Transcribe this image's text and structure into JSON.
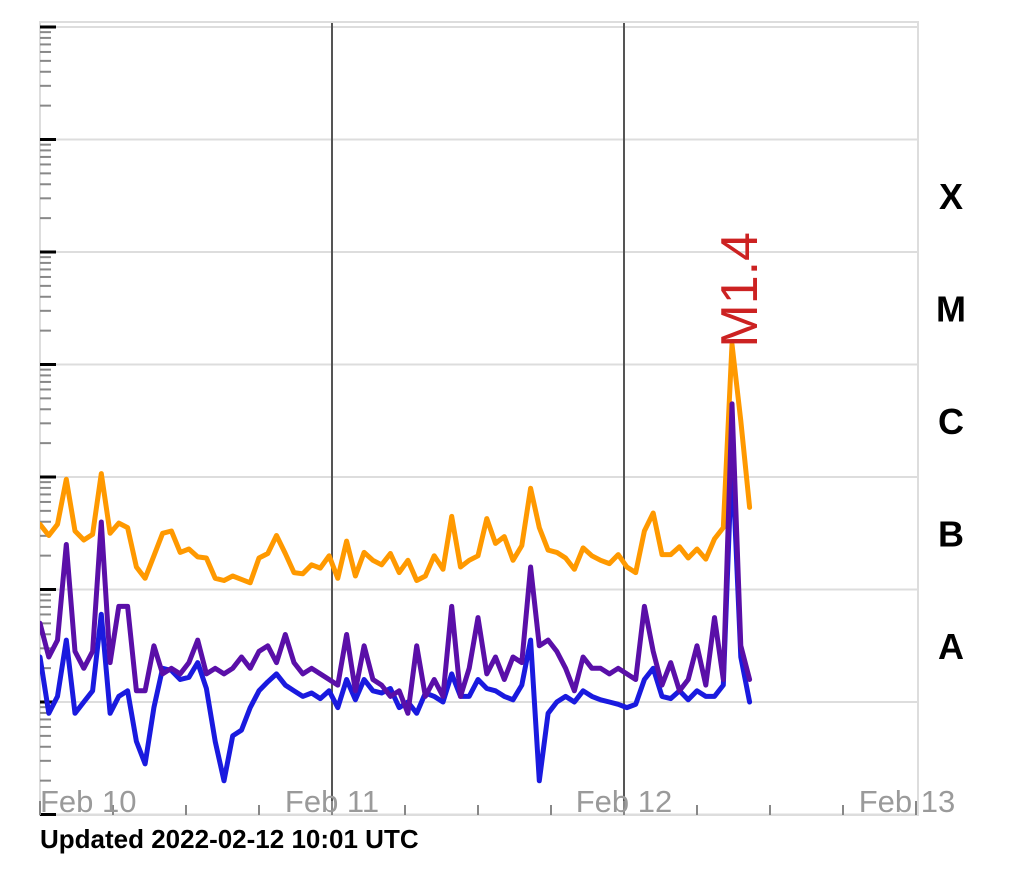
{
  "updated_text": "Updated 2022-02-12 10:01 UTC",
  "colors": {
    "short_channel": "#ff9900",
    "long_channel_primary": "#1a1adf",
    "long_channel_secondary": "#5a0fa8",
    "flare_label": "#cc2222",
    "grid": "#dddddd",
    "day_line": "#555555"
  },
  "chart_data": {
    "type": "line",
    "title": "",
    "xlabel": "",
    "ylabel": "",
    "y_scale": "log",
    "ylim_class_units": [
      -1,
      6
    ],
    "x_range_days": [
      "Feb 10",
      "Feb 13"
    ],
    "x_tick_labels": [
      "Feb 10",
      "Feb 11",
      "Feb 12",
      "Feb 13"
    ],
    "y_class_labels": [
      "A",
      "B",
      "C",
      "M",
      "X"
    ],
    "grid": true,
    "day_separators": [
      "Feb 11",
      "Feb 12"
    ],
    "annotations": [
      {
        "text": "M1.4",
        "x_days": 2.37,
        "y_class": 3.15,
        "rotation": -90
      }
    ],
    "series": [
      {
        "color_key": "short_channel",
        "x_days": [
          0.0,
          0.03,
          0.06,
          0.09,
          0.12,
          0.15,
          0.18,
          0.21,
          0.24,
          0.27,
          0.3,
          0.33,
          0.36,
          0.39,
          0.42,
          0.45,
          0.48,
          0.51,
          0.54,
          0.57,
          0.6,
          0.63,
          0.66,
          0.69,
          0.72,
          0.75,
          0.78,
          0.81,
          0.84,
          0.87,
          0.9,
          0.93,
          0.96,
          0.99,
          1.02,
          1.05,
          1.08,
          1.11,
          1.14,
          1.17,
          1.2,
          1.23,
          1.26,
          1.29,
          1.32,
          1.35,
          1.38,
          1.41,
          1.44,
          1.47,
          1.5,
          1.53,
          1.56,
          1.59,
          1.62,
          1.65,
          1.68,
          1.71,
          1.74,
          1.77,
          1.8,
          1.83,
          1.86,
          1.89,
          1.92,
          1.95,
          1.98,
          2.01,
          2.04,
          2.07,
          2.1,
          2.13,
          2.16,
          2.19,
          2.22,
          2.25,
          2.28,
          2.31,
          2.34,
          2.37,
          2.4,
          2.43
        ],
        "y_class": [
          1.58,
          1.48,
          1.58,
          1.98,
          1.52,
          1.44,
          1.49,
          2.03,
          1.5,
          1.59,
          1.55,
          1.2,
          1.1,
          1.3,
          1.5,
          1.52,
          1.33,
          1.36,
          1.29,
          1.28,
          1.1,
          1.08,
          1.12,
          1.09,
          1.06,
          1.28,
          1.32,
          1.48,
          1.32,
          1.15,
          1.14,
          1.22,
          1.19,
          1.3,
          1.1,
          1.43,
          1.12,
          1.33,
          1.26,
          1.22,
          1.32,
          1.15,
          1.26,
          1.08,
          1.12,
          1.3,
          1.18,
          1.65,
          1.2,
          1.26,
          1.3,
          1.63,
          1.41,
          1.47,
          1.26,
          1.39,
          1.9,
          1.55,
          1.35,
          1.33,
          1.28,
          1.18,
          1.37,
          1.3,
          1.26,
          1.23,
          1.31,
          1.2,
          1.15,
          1.52,
          1.68,
          1.31,
          1.31,
          1.38,
          1.28,
          1.36,
          1.27,
          1.45,
          1.55,
          3.18,
          2.5,
          1.73
        ]
      },
      {
        "color_key": "long_channel_primary",
        "x_days": [
          0.0,
          0.03,
          0.06,
          0.09,
          0.12,
          0.15,
          0.18,
          0.21,
          0.24,
          0.27,
          0.3,
          0.33,
          0.36,
          0.39,
          0.42,
          0.45,
          0.48,
          0.51,
          0.54,
          0.57,
          0.6,
          0.63,
          0.66,
          0.69,
          0.72,
          0.75,
          0.78,
          0.81,
          0.84,
          0.87,
          0.9,
          0.93,
          0.96,
          0.99,
          1.02,
          1.05,
          1.08,
          1.11,
          1.14,
          1.17,
          1.2,
          1.23,
          1.26,
          1.29,
          1.32,
          1.35,
          1.38,
          1.41,
          1.44,
          1.47,
          1.5,
          1.53,
          1.56,
          1.59,
          1.62,
          1.65,
          1.68,
          1.71,
          1.74,
          1.77,
          1.8,
          1.83,
          1.86,
          1.89,
          1.92,
          1.95,
          1.98,
          2.01,
          2.04,
          2.07,
          2.1,
          2.13,
          2.16,
          2.19,
          2.22,
          2.25,
          2.28,
          2.31,
          2.34,
          2.37,
          2.4,
          2.43
        ],
        "y_class": [
          0.4,
          -0.1,
          0.05,
          0.55,
          -0.1,
          0.0,
          0.1,
          0.78,
          -0.1,
          0.05,
          0.1,
          -0.35,
          -0.55,
          -0.05,
          0.3,
          0.28,
          0.2,
          0.22,
          0.35,
          0.12,
          -0.35,
          -0.7,
          -0.3,
          -0.25,
          -0.05,
          0.1,
          0.18,
          0.25,
          0.15,
          0.1,
          0.05,
          0.08,
          0.03,
          0.1,
          -0.05,
          0.2,
          0.02,
          0.2,
          0.1,
          0.08,
          0.12,
          -0.05,
          0.0,
          -0.1,
          0.08,
          0.05,
          0.0,
          0.25,
          0.05,
          0.05,
          0.2,
          0.12,
          0.1,
          0.05,
          0.02,
          0.15,
          0.55,
          -0.7,
          -0.1,
          0.0,
          0.05,
          0.0,
          0.1,
          0.05,
          0.02,
          0.0,
          -0.02,
          -0.05,
          -0.02,
          0.2,
          0.3,
          0.05,
          0.03,
          0.1,
          0.02,
          0.1,
          0.05,
          0.05,
          0.15,
          2.2,
          0.4,
          0.0
        ]
      },
      {
        "color_key": "long_channel_secondary",
        "x_days": [
          0.0,
          0.03,
          0.06,
          0.09,
          0.12,
          0.15,
          0.18,
          0.21,
          0.24,
          0.27,
          0.3,
          0.33,
          0.36,
          0.39,
          0.42,
          0.45,
          0.48,
          0.51,
          0.54,
          0.57,
          0.6,
          0.63,
          0.66,
          0.69,
          0.72,
          0.75,
          0.78,
          0.81,
          0.84,
          0.87,
          0.9,
          0.93,
          0.96,
          0.99,
          1.02,
          1.05,
          1.08,
          1.11,
          1.14,
          1.17,
          1.2,
          1.23,
          1.26,
          1.29,
          1.32,
          1.35,
          1.38,
          1.41,
          1.44,
          1.47,
          1.5,
          1.53,
          1.56,
          1.59,
          1.62,
          1.65,
          1.68,
          1.71,
          1.74,
          1.77,
          1.8,
          1.83,
          1.86,
          1.89,
          1.92,
          1.95,
          1.98,
          2.01,
          2.04,
          2.07,
          2.1,
          2.13,
          2.16,
          2.19,
          2.22,
          2.25,
          2.28,
          2.31,
          2.34,
          2.37,
          2.4,
          2.43
        ],
        "y_class": [
          0.7,
          0.4,
          0.55,
          1.4,
          0.45,
          0.3,
          0.45,
          1.6,
          0.35,
          0.85,
          0.85,
          0.1,
          0.1,
          0.5,
          0.25,
          0.3,
          0.25,
          0.35,
          0.55,
          0.25,
          0.3,
          0.25,
          0.3,
          0.4,
          0.3,
          0.45,
          0.5,
          0.35,
          0.6,
          0.35,
          0.25,
          0.3,
          0.25,
          0.2,
          0.15,
          0.6,
          0.1,
          0.5,
          0.2,
          0.15,
          0.05,
          0.1,
          -0.1,
          0.5,
          0.05,
          0.2,
          0.05,
          0.85,
          0.05,
          0.3,
          0.75,
          0.25,
          0.4,
          0.2,
          0.4,
          0.35,
          1.2,
          0.5,
          0.55,
          0.45,
          0.3,
          0.1,
          0.4,
          0.3,
          0.3,
          0.25,
          0.3,
          0.25,
          0.2,
          0.85,
          0.45,
          0.15,
          0.35,
          0.1,
          0.2,
          0.5,
          0.15,
          0.75,
          0.2,
          2.65,
          0.5,
          0.2
        ]
      }
    ]
  }
}
